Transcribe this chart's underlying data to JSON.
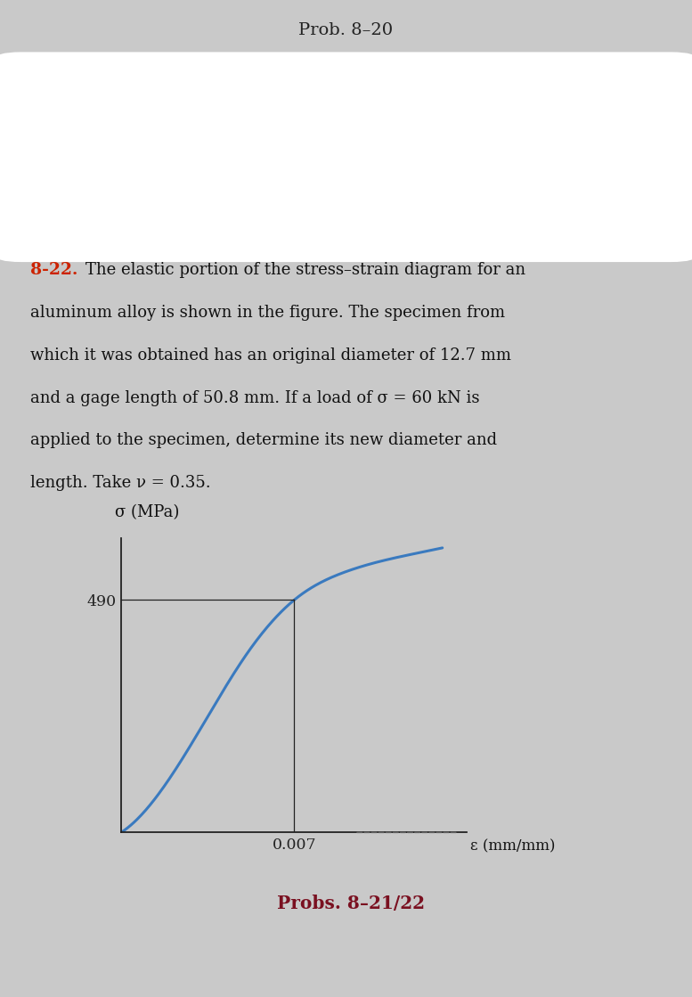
{
  "title_top": "Prob. 8–20",
  "ylabel": "σ (MPa)",
  "xlabel": "ε (mm/mm)",
  "y_tick_val": 490,
  "x_tick_val": 0.007,
  "line_color": "#3a7abf",
  "axis_color": "#222222",
  "page_bg": "#c9c9c9",
  "caption": "Probs. 8–21/22",
  "caption_color": "#7a1020",
  "xlim": [
    0,
    0.014
  ],
  "ylim": [
    0,
    620
  ],
  "curve_x": [
    0,
    0.0015,
    0.003,
    0.005,
    0.007,
    0.009,
    0.011,
    0.013
  ],
  "curve_y": [
    0,
    80,
    200,
    370,
    490,
    548,
    578,
    600
  ],
  "prob_num_color": "#cc2200",
  "text_color": "#111111",
  "white_box_color": "#ffffff",
  "line1": "The elastic portion of the stress–strain diagram for an",
  "line2": "aluminum alloy is shown in the figure. The specimen from",
  "line3": "which it was obtained has an original diameter of 12.7 mm",
  "line4": "and a gage length of 50.8 mm. If a load of σ = 60 kN is",
  "line5": "applied to the specimen, determine its new diameter and",
  "line6": "length. Take ν = 0.35."
}
